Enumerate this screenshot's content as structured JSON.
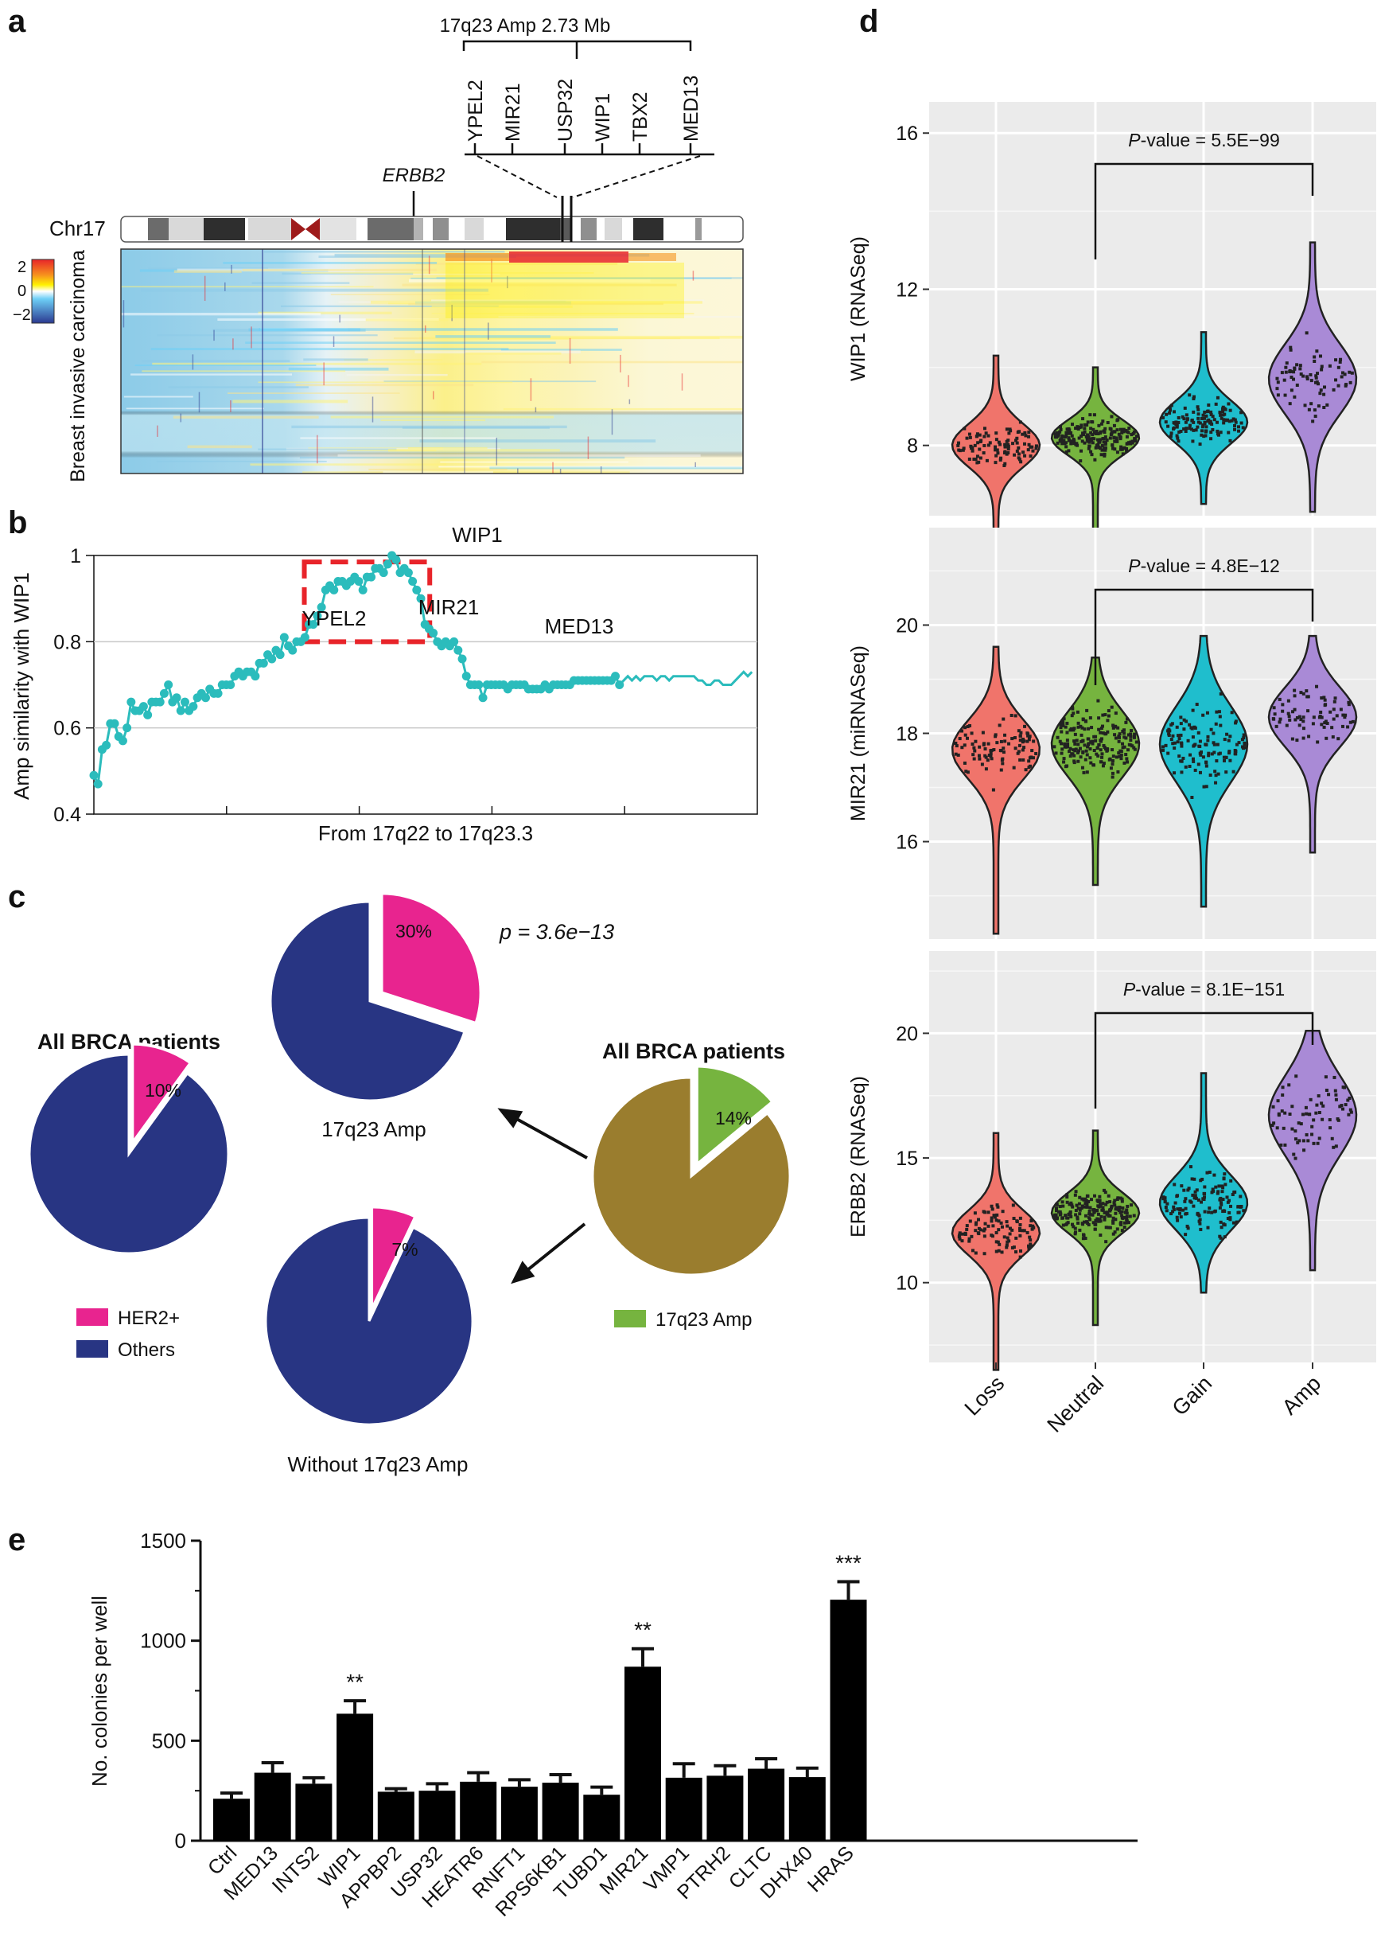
{
  "panel_labels": {
    "a": "a",
    "b": "b",
    "c": "c",
    "d": "d",
    "e": "e"
  },
  "panel_a": {
    "region_title": "17q23 Amp 2.73 Mb",
    "genes": [
      "YPEL2",
      "MIR21",
      "USP32",
      "WIP1",
      "TBX2",
      "MED13"
    ],
    "highlight_gene": "WIP1",
    "marker_gene": "ERBB2",
    "chromosome": "Chr17",
    "scale_ticks": [
      "2",
      "0",
      "−2"
    ],
    "y_label": "Breast invasive carcinoma",
    "colors": {
      "high": "#e8242a",
      "mid": "#ffffff",
      "low": "#2b5ca8",
      "highlight": "#e8242a"
    }
  },
  "chart_data": [
    {
      "type": "line",
      "id": "b",
      "xlabel": "From 17q22 to 17q23.3",
      "ylabel": "Amp similarity with WIP1",
      "ylim": [
        0.4,
        1.0
      ],
      "yticks": [
        "0.4",
        "0.6",
        "0.8",
        "1"
      ],
      "annotations": [
        "WIP1",
        "YPEL2",
        "MIR21",
        "MED13"
      ],
      "x": [
        0,
        1,
        2,
        3,
        4,
        5,
        6,
        7,
        8,
        9,
        10,
        11,
        12,
        13,
        14,
        15,
        16,
        17,
        18,
        19,
        20,
        21,
        22,
        23,
        24,
        25,
        26,
        27,
        28,
        29,
        30,
        31,
        32,
        33,
        34,
        35,
        36,
        37,
        38,
        39,
        40,
        41,
        42,
        43,
        44,
        45,
        46,
        47,
        48,
        49,
        50,
        51,
        52,
        53,
        54,
        55,
        56,
        57,
        58,
        59,
        60,
        61,
        62,
        63,
        64,
        65,
        66,
        67,
        68,
        69,
        70,
        71,
        72,
        73,
        74,
        75,
        76,
        77,
        78,
        79,
        80,
        81,
        82,
        83,
        84,
        85,
        86,
        87,
        88,
        89,
        90,
        91,
        92,
        93,
        94,
        95,
        96,
        97,
        98,
        99,
        100,
        101,
        102,
        103,
        104,
        105,
        106,
        107,
        108,
        109,
        110,
        111,
        112,
        113,
        114,
        115,
        116,
        117,
        118,
        119,
        120,
        121,
        122,
        123,
        124,
        125,
        126,
        127,
        128,
        129,
        130,
        131,
        132,
        133,
        134,
        135,
        136,
        137,
        138,
        139,
        140,
        141,
        142,
        143,
        144,
        145,
        146,
        147,
        148,
        149,
        150,
        151,
        152,
        153,
        154,
        155,
        156,
        157,
        158,
        159
      ],
      "y": [
        0.49,
        0.47,
        0.55,
        0.56,
        0.61,
        0.61,
        0.58,
        0.57,
        0.6,
        0.66,
        0.64,
        0.64,
        0.65,
        0.63,
        0.66,
        0.66,
        0.66,
        0.68,
        0.7,
        0.66,
        0.67,
        0.64,
        0.66,
        0.64,
        0.65,
        0.67,
        0.68,
        0.67,
        0.69,
        0.68,
        0.68,
        0.7,
        0.7,
        0.7,
        0.72,
        0.73,
        0.72,
        0.73,
        0.73,
        0.72,
        0.75,
        0.75,
        0.77,
        0.76,
        0.78,
        0.77,
        0.81,
        0.79,
        0.78,
        0.8,
        0.8,
        0.81,
        0.84,
        0.84,
        0.86,
        0.88,
        0.92,
        0.93,
        0.92,
        0.94,
        0.94,
        0.93,
        0.94,
        0.95,
        0.94,
        0.92,
        0.95,
        0.95,
        0.97,
        0.97,
        0.96,
        0.98,
        1.0,
        0.99,
        0.96,
        0.97,
        0.96,
        0.94,
        0.92,
        0.9,
        0.84,
        0.83,
        0.82,
        0.8,
        0.79,
        0.8,
        0.79,
        0.8,
        0.78,
        0.76,
        0.72,
        0.7,
        0.7,
        0.7,
        0.67,
        0.7,
        0.7,
        0.7,
        0.7,
        0.7,
        0.69,
        0.7,
        0.7,
        0.7,
        0.7,
        0.69,
        0.69,
        0.69,
        0.69,
        0.7,
        0.69,
        0.7,
        0.7,
        0.7,
        0.7,
        0.7,
        0.71,
        0.71,
        0.71,
        0.71,
        0.71,
        0.71,
        0.71,
        0.71,
        0.71,
        0.71,
        0.72,
        0.7,
        0.71,
        0.72,
        0.71,
        0.72,
        0.71,
        0.72,
        0.72,
        0.72,
        0.71,
        0.72,
        0.72,
        0.71,
        0.72,
        0.72,
        0.72,
        0.72,
        0.72,
        0.72,
        0.71,
        0.71,
        0.7,
        0.7,
        0.71,
        0.71,
        0.7,
        0.7,
        0.7,
        0.71,
        0.72,
        0.73,
        0.72,
        0.73
      ],
      "color": "#2bbcbc",
      "box_color": "#e8242a"
    },
    {
      "type": "pie",
      "id": "c",
      "title_left": "All BRCA patients",
      "title_right": "All BRCA patients",
      "pval": "p = 3.6e−13",
      "pies": [
        {
          "name": "All BRCA",
          "label": "10%",
          "fraction": 0.1,
          "colors": [
            "#e8248f",
            "#283583"
          ]
        },
        {
          "name": "17q23 Amp",
          "label": "30%",
          "fraction": 0.3,
          "colors": [
            "#e8248f",
            "#283583"
          ]
        },
        {
          "name": "Without 17q23 Amp",
          "label": "7%",
          "fraction": 0.07,
          "colors": [
            "#e8248f",
            "#283583"
          ]
        },
        {
          "name": "All BRCA right",
          "label": "14%",
          "fraction": 0.14,
          "colors": [
            "#76b43f",
            "#9a7d2e"
          ]
        }
      ],
      "pie_captions": [
        "17q23 Amp",
        "Without 17q23 Amp"
      ],
      "legend": [
        {
          "label": "HER2+",
          "color": "#e8248f"
        },
        {
          "label": "Others",
          "color": "#283583"
        },
        {
          "label": "17q23 Amp",
          "color": "#76b43f"
        }
      ]
    },
    {
      "type": "violin",
      "id": "d",
      "categories": [
        "Loss",
        "Neutral",
        "Gain",
        "Amp"
      ],
      "colors": [
        "#f0746b",
        "#76b43f",
        "#1fbecd",
        "#a98ad6"
      ],
      "panels": [
        {
          "ylabel": "WIP1 (RNASeq)",
          "yticks": [
            8,
            12,
            16
          ],
          "ylim": [
            6.2,
            16.8
          ],
          "pval": "P-value = 5.5E−99",
          "pval_prefix": "P",
          "pval_rest": "-value = 5.5E−99",
          "medians": [
            8.0,
            8.2,
            8.6,
            9.7
          ]
        },
        {
          "ylabel": "MIR21 (miRNASeq)",
          "yticks": [
            16,
            18,
            20
          ],
          "ylim": [
            14.2,
            21.8
          ],
          "pval": "P-value = 4.8E−12",
          "pval_prefix": "P",
          "pval_rest": "-value = 4.8E−12",
          "medians": [
            17.7,
            17.8,
            17.8,
            18.3
          ]
        },
        {
          "ylabel": "ERBB2 (RNASeq)",
          "yticks": [
            10,
            15,
            20
          ],
          "ylim": [
            6.8,
            23.3
          ],
          "pval": "P-value = 8.1E−151",
          "pval_prefix": "P",
          "pval_rest": "-value = 8.1E−151",
          "medians": [
            12.0,
            12.8,
            13.2,
            16.7
          ]
        }
      ]
    },
    {
      "type": "bar",
      "id": "e",
      "ylabel": "No. colonies per well",
      "ylim": [
        0,
        1500
      ],
      "yticks": [
        "0",
        "500",
        "1000",
        "1500"
      ],
      "categories": [
        "Ctrl",
        "MED13",
        "INTS2",
        "WIP1",
        "APPBP2",
        "USP32",
        "HEATR6",
        "RNFT1",
        "RPS6KB1",
        "TUBD1",
        "MIR21",
        "VMP1",
        "PTRH2",
        "CLTC",
        "DHX40",
        "HRAS"
      ],
      "values": [
        210,
        340,
        285,
        635,
        245,
        250,
        295,
        270,
        290,
        230,
        870,
        315,
        325,
        360,
        318,
        1205
      ],
      "errors": [
        28,
        50,
        30,
        65,
        15,
        35,
        45,
        35,
        40,
        38,
        90,
        70,
        50,
        50,
        45,
        90
      ],
      "significance": [
        "",
        "",
        "",
        "**",
        "",
        "",
        "",
        "",
        "",
        "",
        "**",
        "",
        "",
        "",
        "",
        "***"
      ],
      "color": "#000000"
    }
  ]
}
